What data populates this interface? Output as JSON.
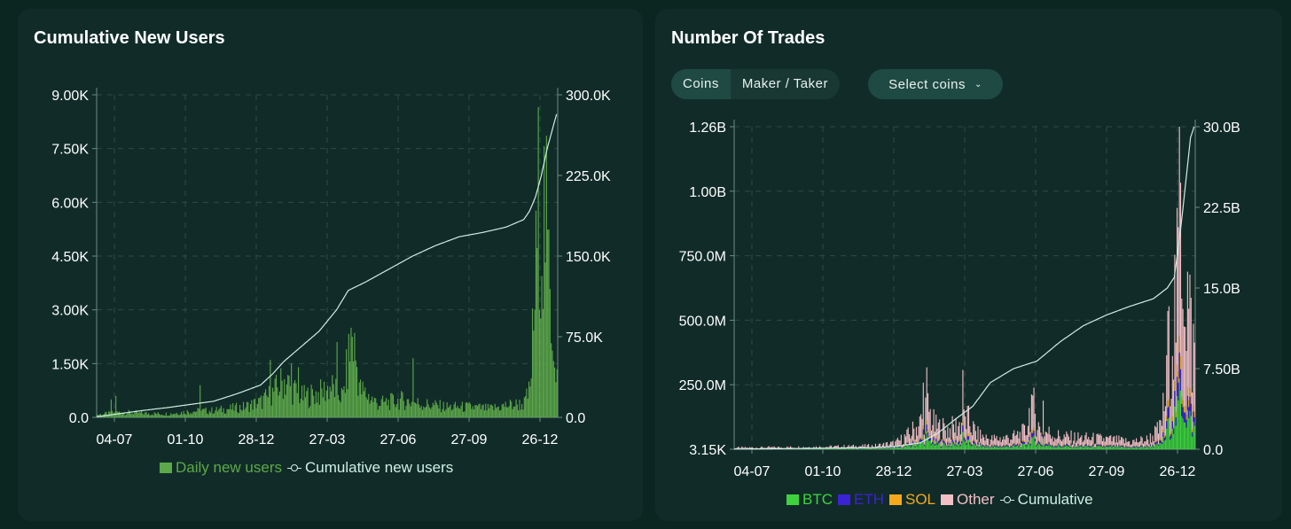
{
  "left_panel": {
    "title": "Cumulative New Users",
    "legend": [
      {
        "name": "Daily new users",
        "color": "#5da84a"
      },
      {
        "name": "Cumulative new users",
        "color": "#cfeee4"
      }
    ]
  },
  "right_panel": {
    "title": "Number Of Trades",
    "toggle": [
      "Coins",
      "Maker / Taker"
    ],
    "select_label": "Select coins",
    "chevron_icon": "chevron-down-icon",
    "legend": [
      {
        "name": "BTC",
        "color": "#3ed33e"
      },
      {
        "name": "ETH",
        "color": "#3b22d6"
      },
      {
        "name": "SOL",
        "color": "#f4a91d"
      },
      {
        "name": "Other",
        "color": "#f3bfc7"
      },
      {
        "name": "Cumulative",
        "color": "#cfeee4"
      }
    ]
  },
  "chart_data": [
    {
      "type": "bar",
      "title": "Cumulative New Users",
      "x_ticks": [
        "04-07",
        "01-10",
        "28-12",
        "27-03",
        "27-06",
        "27-09",
        "26-12"
      ],
      "y_left_ticks": [
        "0.0",
        "1.50K",
        "3.00K",
        "4.50K",
        "6.00K",
        "7.50K",
        "9.00K"
      ],
      "y_left_range": [
        0,
        9000
      ],
      "y_right_ticks": [
        "0.0",
        "75.0K",
        "150.0K",
        "225.0K",
        "300.0K"
      ],
      "y_right_range": [
        0,
        300000
      ],
      "grid": true,
      "legend_position": "bottom-center",
      "series": [
        {
          "name": "Daily new users",
          "kind": "bar",
          "axis": "left",
          "color": "#5da84a",
          "keypoints": [
            [
              0,
              80
            ],
            [
              20,
              150
            ],
            [
              40,
              120
            ],
            [
              60,
              100
            ],
            [
              80,
              180
            ],
            [
              100,
              200
            ],
            [
              125,
              300
            ],
            [
              140,
              450
            ],
            [
              150,
              700
            ],
            [
              160,
              1100
            ],
            [
              168,
              800
            ],
            [
              175,
              600
            ],
            [
              190,
              700
            ],
            [
              200,
              900
            ],
            [
              210,
              600
            ],
            [
              218,
              2400
            ],
            [
              225,
              800
            ],
            [
              240,
              400
            ],
            [
              260,
              500
            ],
            [
              280,
              380
            ],
            [
              300,
              300
            ],
            [
              320,
              300
            ],
            [
              335,
              250
            ],
            [
              350,
              350
            ],
            [
              365,
              400
            ],
            [
              370,
              800
            ],
            [
              375,
              4200
            ],
            [
              378,
              7000
            ],
            [
              380,
              5500
            ],
            [
              383,
              6000
            ],
            [
              386,
              4000
            ],
            [
              390,
              2500
            ],
            [
              393,
              1200
            ]
          ],
          "spikes": [
            [
              148,
              1600
            ],
            [
              166,
              1500
            ],
            [
              172,
              1400
            ],
            [
              205,
              2100
            ],
            [
              217,
              2500
            ],
            [
              270,
              1650
            ],
            [
              88,
              900
            ],
            [
              12,
              500
            ],
            [
              16,
              600
            ]
          ]
        },
        {
          "name": "Cumulative new users",
          "kind": "line",
          "axis": "right",
          "color": "#cfeee4",
          "keypoints": [
            [
              0,
              500
            ],
            [
              20,
              3500
            ],
            [
              40,
              6500
            ],
            [
              60,
              9000
            ],
            [
              80,
              12000
            ],
            [
              100,
              15000
            ],
            [
              120,
              22000
            ],
            [
              140,
              30000
            ],
            [
              150,
              40000
            ],
            [
              160,
              52000
            ],
            [
              175,
              66000
            ],
            [
              190,
              80000
            ],
            [
              205,
              100000
            ],
            [
              215,
              118000
            ],
            [
              230,
              126000
            ],
            [
              250,
              138000
            ],
            [
              270,
              150000
            ],
            [
              290,
              160000
            ],
            [
              310,
              168000
            ],
            [
              330,
              172000
            ],
            [
              350,
              177000
            ],
            [
              365,
              184000
            ],
            [
              370,
              192000
            ],
            [
              375,
              205000
            ],
            [
              380,
              225000
            ],
            [
              385,
              250000
            ],
            [
              390,
              270000
            ],
            [
              393,
              282000
            ]
          ]
        }
      ]
    },
    {
      "type": "bar",
      "title": "Number Of Trades",
      "x_ticks": [
        "04-07",
        "01-10",
        "28-12",
        "27-03",
        "27-06",
        "27-09",
        "26-12"
      ],
      "y_left_ticks": [
        "3.15K",
        "250.0M",
        "500.0M",
        "750.0M",
        "1.00B",
        "1.26B"
      ],
      "y_left_range": [
        3150,
        1260000000
      ],
      "y_right_ticks": [
        "0.0",
        "7.50B",
        "15.0B",
        "22.5B",
        "30.0B"
      ],
      "y_right_range": [
        0,
        30000000000
      ],
      "grid": true,
      "legend_position": "bottom-center",
      "stacked": true,
      "series": [
        {
          "name": "BTC",
          "color": "#3ed33e",
          "share": 0.22
        },
        {
          "name": "ETH",
          "color": "#3b22d6",
          "share": 0.08
        },
        {
          "name": "SOL",
          "color": "#f4a91d",
          "share": 0.05
        },
        {
          "name": "Other",
          "color": "#f3bfc7",
          "share": 0.65
        },
        {
          "name": "Cumulative",
          "kind": "line",
          "axis": "right",
          "color": "#cfeee4",
          "keypoints": [
            [
              0,
              20000000
            ],
            [
              40,
              50000000
            ],
            [
              80,
              100000000
            ],
            [
              120,
              150000000
            ],
            [
              140,
              280000000
            ],
            [
              160,
              600000000
            ],
            [
              175,
              1500000000
            ],
            [
              190,
              2800000000
            ],
            [
              205,
              4000000000
            ],
            [
              220,
              6200000000
            ],
            [
              240,
              7500000000
            ],
            [
              260,
              8200000000
            ],
            [
              280,
              10000000000
            ],
            [
              300,
              11500000000
            ],
            [
              320,
              12500000000
            ],
            [
              340,
              13300000000
            ],
            [
              360,
              14000000000
            ],
            [
              372,
              15000000000
            ],
            [
              378,
              16000000000
            ],
            [
              383,
              20000000000
            ],
            [
              388,
              25000000000
            ],
            [
              392,
              29000000000
            ],
            [
              395,
              30000000000
            ]
          ]
        }
      ],
      "total_keypoints": [
        [
          0,
          6000000
        ],
        [
          40,
          8000000
        ],
        [
          80,
          10000000
        ],
        [
          120,
          14000000
        ],
        [
          138,
          25000000
        ],
        [
          150,
          60000000
        ],
        [
          160,
          110000000
        ],
        [
          165,
          180000000
        ],
        [
          172,
          90000000
        ],
        [
          185,
          80000000
        ],
        [
          200,
          120000000
        ],
        [
          208,
          60000000
        ],
        [
          220,
          40000000
        ],
        [
          240,
          50000000
        ],
        [
          250,
          70000000
        ],
        [
          255,
          200000000
        ],
        [
          262,
          80000000
        ],
        [
          280,
          50000000
        ],
        [
          300,
          45000000
        ],
        [
          320,
          40000000
        ],
        [
          340,
          30000000
        ],
        [
          355,
          40000000
        ],
        [
          365,
          80000000
        ],
        [
          370,
          200000000
        ],
        [
          375,
          500000000
        ],
        [
          380,
          620000000
        ],
        [
          383,
          1050000000
        ],
        [
          386,
          800000000
        ],
        [
          390,
          550000000
        ],
        [
          394,
          400000000
        ]
      ],
      "spikes": [
        [
          162,
          260000000
        ],
        [
          165,
          320000000
        ],
        [
          196,
          310000000
        ],
        [
          256,
          210000000
        ],
        [
          265,
          190000000
        ],
        [
          372,
          540000000
        ],
        [
          382,
          1260000000
        ]
      ]
    }
  ]
}
